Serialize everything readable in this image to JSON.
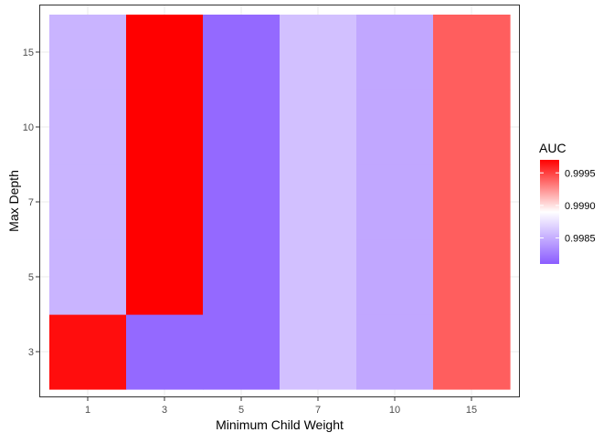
{
  "chart_data": {
    "type": "heatmap",
    "title": "",
    "xlabel": "Minimum Child Weight",
    "ylabel": "Max Depth",
    "x_categories": [
      "1",
      "3",
      "5",
      "7",
      "10",
      "15"
    ],
    "y_categories": [
      "3",
      "5",
      "7",
      "10",
      "15"
    ],
    "cells": [
      {
        "x": "1",
        "y": "3",
        "value": 0.99965
      },
      {
        "x": "1",
        "y": "5",
        "value": 0.99845
      },
      {
        "x": "1",
        "y": "7",
        "value": 0.99845
      },
      {
        "x": "1",
        "y": "10",
        "value": 0.99845
      },
      {
        "x": "1",
        "y": "15",
        "value": 0.99845
      },
      {
        "x": "3",
        "y": "3",
        "value": 0.99815
      },
      {
        "x": "3",
        "y": "5",
        "value": 0.9997
      },
      {
        "x": "3",
        "y": "7",
        "value": 0.9997
      },
      {
        "x": "3",
        "y": "10",
        "value": 0.9997
      },
      {
        "x": "3",
        "y": "15",
        "value": 0.9997
      },
      {
        "x": "5",
        "y": "3",
        "value": 0.99815
      },
      {
        "x": "5",
        "y": "5",
        "value": 0.99815
      },
      {
        "x": "5",
        "y": "7",
        "value": 0.99815
      },
      {
        "x": "5",
        "y": "10",
        "value": 0.99815
      },
      {
        "x": "5",
        "y": "15",
        "value": 0.99815
      },
      {
        "x": "7",
        "y": "3",
        "value": 0.9985
      },
      {
        "x": "7",
        "y": "5",
        "value": 0.9985
      },
      {
        "x": "7",
        "y": "7",
        "value": 0.9985
      },
      {
        "x": "7",
        "y": "10",
        "value": 0.9985
      },
      {
        "x": "7",
        "y": "15",
        "value": 0.9985
      },
      {
        "x": "10",
        "y": "3",
        "value": 0.9984
      },
      {
        "x": "10",
        "y": "5",
        "value": 0.9984
      },
      {
        "x": "10",
        "y": "7",
        "value": 0.9984
      },
      {
        "x": "10",
        "y": "10",
        "value": 0.9984
      },
      {
        "x": "10",
        "y": "15",
        "value": 0.9984
      },
      {
        "x": "15",
        "y": "3",
        "value": 0.99935
      },
      {
        "x": "15",
        "y": "5",
        "value": 0.99935
      },
      {
        "x": "15",
        "y": "7",
        "value": 0.99935
      },
      {
        "x": "15",
        "y": "10",
        "value": 0.99935
      },
      {
        "x": "15",
        "y": "15",
        "value": 0.99935
      }
    ],
    "color_scale": {
      "low_color": "#8B5CFF",
      "mid_color": "#FFFFFF",
      "high_color": "#FF0000",
      "min": 0.9981,
      "mid": 0.99875,
      "max": 0.9997
    },
    "legend": {
      "title": "AUC",
      "placement": "right",
      "ticks": [
        {
          "value": 0.9985,
          "label": "0.9985"
        },
        {
          "value": 0.999,
          "label": "0.9990"
        },
        {
          "value": 0.9995,
          "label": "0.9995"
        }
      ]
    },
    "grid": true
  }
}
